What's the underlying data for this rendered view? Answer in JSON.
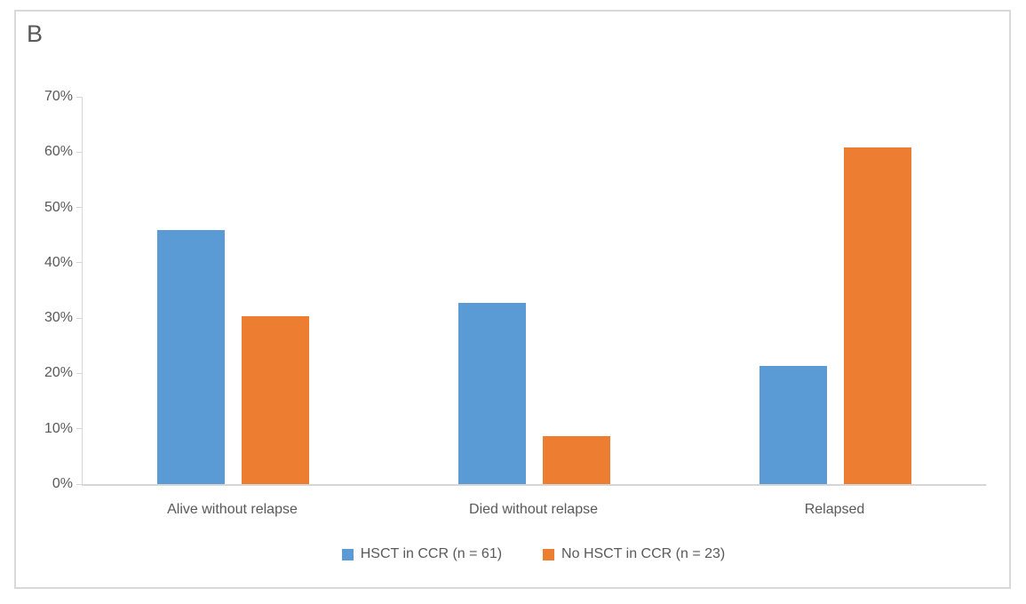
{
  "panel_label": "B",
  "chart_data": {
    "type": "bar",
    "title": "",
    "xlabel": "",
    "ylabel": "",
    "categories": [
      "Alive without relapse",
      "Died without relapse",
      "Relapsed"
    ],
    "series": [
      {
        "name": "HSCT in CCR (n = 61)",
        "color": "#5B9BD5",
        "values": [
          45.9,
          32.8,
          21.3
        ]
      },
      {
        "name": "No HSCT in CCR (n = 23)",
        "color": "#ED7D31",
        "values": [
          30.4,
          8.7,
          60.9
        ]
      }
    ],
    "ylim": [
      0,
      70
    ],
    "y_tick_step": 10,
    "y_tick_labels": [
      "0%",
      "10%",
      "20%",
      "30%",
      "40%",
      "50%",
      "60%",
      "70%"
    ],
    "grid": false,
    "legend_position": "bottom"
  },
  "colors": {
    "text": "#595959",
    "axis": "#D6D6D6",
    "border": "#D9D9D9",
    "background": "#FFFFFF"
  }
}
